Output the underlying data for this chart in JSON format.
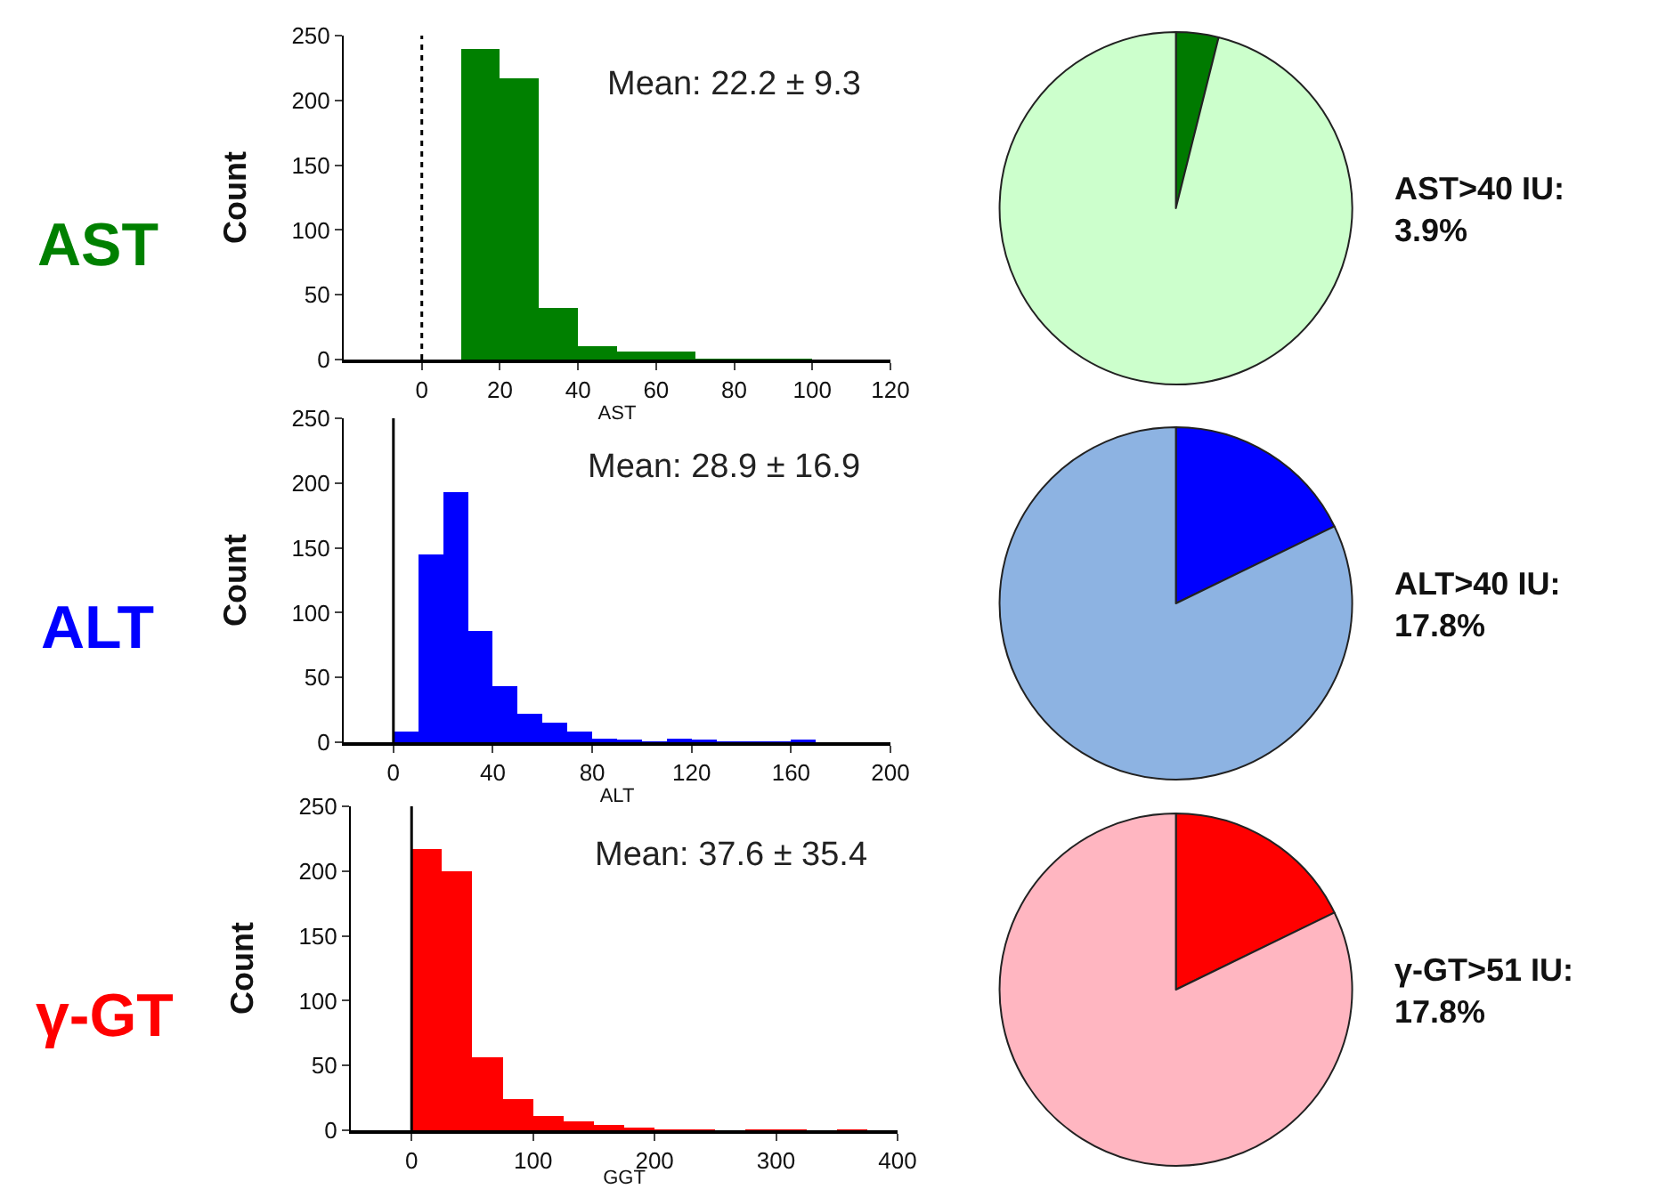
{
  "chart_data": [
    {
      "type": "histogram",
      "title": "AST",
      "xlabel": "AST",
      "ylabel": "Count",
      "color": "#008000",
      "bins": [
        10,
        20,
        30,
        40,
        50,
        60,
        70,
        80,
        90,
        100
      ],
      "values": [
        240,
        217,
        40,
        10,
        6,
        6,
        1,
        1,
        1
      ],
      "xlim": [
        -20,
        120
      ],
      "xticks": [
        0,
        20,
        40,
        60,
        80,
        100,
        120
      ],
      "ylim": [
        0,
        250
      ],
      "yticks": [
        0,
        50,
        100,
        150,
        200,
        250
      ],
      "ref_lines": [
        {
          "axis": "x",
          "value": 0,
          "color": "#000000",
          "line_style": "dotted"
        }
      ],
      "annotations": [
        "Mean: 22.2 ± 9.3"
      ],
      "grid": false,
      "legend": false
    },
    {
      "type": "pie",
      "categories": [
        null,
        null
      ],
      "values": [
        3.9,
        96.1
      ],
      "colors": [
        "#007a00",
        "#ccffcc"
      ],
      "annotations": [
        "AST>40 IU:\n3.9%"
      ],
      "legend": false
    },
    {
      "type": "histogram",
      "title": "ALT",
      "xlabel": "ALT",
      "ylabel": "Count",
      "color": "#0000ff",
      "bins": [
        0,
        10,
        20,
        30,
        40,
        50,
        60,
        70,
        80,
        90,
        100,
        110,
        120,
        130,
        140,
        150,
        160,
        170
      ],
      "values": [
        8,
        145,
        193,
        86,
        43,
        22,
        15,
        8,
        3,
        2,
        1,
        3,
        2,
        1,
        1,
        1,
        2
      ],
      "xlim": [
        -20,
        200
      ],
      "xticks": [
        0,
        40,
        80,
        120,
        160,
        200
      ],
      "ylim": [
        0,
        250
      ],
      "yticks": [
        0,
        50,
        100,
        150,
        200,
        250
      ],
      "ref_lines": [
        {
          "axis": "x",
          "value": 0,
          "color": "#000000",
          "line_style": "solid"
        }
      ],
      "annotations": [
        "Mean: 28.9 ± 16.9"
      ],
      "grid": false,
      "legend": false
    },
    {
      "type": "pie",
      "categories": [
        null,
        null
      ],
      "values": [
        17.8,
        82.2
      ],
      "colors": [
        "#0000ff",
        "#8db3e2"
      ],
      "annotations": [
        "ALT>40 IU:\n17.8%"
      ],
      "legend": false
    },
    {
      "type": "histogram",
      "title": "γ-GT",
      "xlabel": "GGT",
      "ylabel": "Count",
      "color": "#ff0000",
      "bins": [
        0,
        25,
        50,
        75,
        100,
        125,
        150,
        175,
        200,
        225,
        250,
        275,
        300,
        325,
        350,
        375
      ],
      "values": [
        217,
        200,
        56,
        24,
        11,
        7,
        4,
        2,
        1,
        1,
        0,
        1,
        1,
        0,
        1
      ],
      "xlim": [
        -50,
        400
      ],
      "xticks": [
        0,
        100,
        200,
        300,
        400
      ],
      "ylim": [
        0,
        250
      ],
      "yticks": [
        0,
        50,
        100,
        150,
        200,
        250
      ],
      "ref_lines": [
        {
          "axis": "x",
          "value": 0,
          "color": "#000000",
          "line_style": "solid"
        }
      ],
      "annotations": [
        "Mean: 37.6 ± 35.4"
      ],
      "grid": false,
      "legend": false
    },
    {
      "type": "pie",
      "categories": [
        null,
        null
      ],
      "values": [
        17.8,
        82.2
      ],
      "colors": [
        "#ff0000",
        "#ffb6c1"
      ],
      "annotations": [
        "γ-GT>51 IU:\n17.8%"
      ],
      "legend": false
    }
  ]
}
